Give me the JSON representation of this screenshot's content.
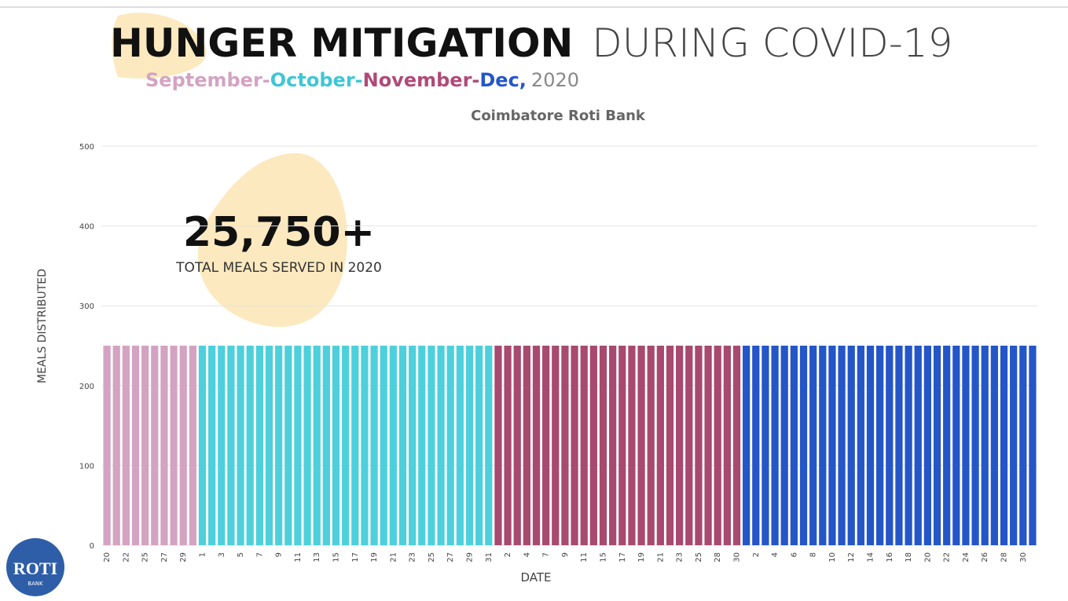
{
  "chart_data": {
    "type": "bar",
    "title_bold": "HUNGER MITIGATION",
    "title_light": "DURING COVID-19",
    "subtitle": [
      {
        "text": "September-",
        "color": "#d4a3c2"
      },
      {
        "text": "October-",
        "color": "#3fc6d6"
      },
      {
        "text": "November-",
        "color": "#b04a78"
      },
      {
        "text": "Dec,",
        "color": "#2456c8"
      },
      {
        "text": "2020",
        "color": "#888888"
      }
    ],
    "chart_title": "Coimbatore Roti Bank",
    "annotation_value": "25,750+",
    "annotation_text": "TOTAL MEALS SERVED IN 2020",
    "y_label": "MEALS DISTRIBUTED",
    "x_label": "DATE",
    "logo_text": "ROTI",
    "logo_subtext": "BANK",
    "ylim": [
      0,
      500
    ],
    "yticks": [
      0,
      100,
      200,
      300,
      400,
      500
    ],
    "grid": true,
    "categories": [
      "20",
      null,
      "22",
      null,
      "25",
      null,
      "27",
      null,
      "29",
      null,
      "1",
      null,
      "3",
      null,
      "5",
      null,
      "7",
      null,
      "9",
      null,
      "11",
      null,
      "13",
      null,
      "15",
      null,
      "17",
      null,
      "19",
      null,
      "21",
      null,
      "23",
      null,
      "25",
      null,
      "27",
      null,
      "29",
      null,
      "31",
      null,
      "2",
      null,
      "4",
      null,
      "7",
      null,
      "9",
      null,
      "11",
      null,
      "15",
      null,
      "17",
      null,
      "19",
      null,
      "21",
      null,
      "23",
      null,
      "25",
      null,
      "28",
      null,
      "30",
      null,
      "2",
      null,
      "4",
      null,
      "6",
      null,
      "8",
      null,
      "10",
      null,
      "12",
      null,
      "14",
      null,
      "16",
      null,
      "18",
      null,
      "20",
      null,
      "22",
      null,
      "24",
      null,
      "26",
      null,
      "28",
      null,
      "30",
      null
    ],
    "values": [
      250,
      250,
      250,
      250,
      250,
      250,
      250,
      250,
      250,
      250,
      250,
      250,
      250,
      250,
      250,
      250,
      250,
      250,
      250,
      250,
      250,
      250,
      250,
      250,
      250,
      250,
      250,
      250,
      250,
      250,
      250,
      250,
      250,
      250,
      250,
      250,
      250,
      250,
      250,
      250,
      250,
      250,
      250,
      250,
      250,
      250,
      250,
      250,
      250,
      250,
      250,
      250,
      250,
      250,
      250,
      250,
      250,
      250,
      250,
      250,
      250,
      250,
      250,
      250,
      250,
      250,
      250,
      250,
      250,
      250,
      250,
      250,
      250,
      250,
      250,
      250,
      250,
      250,
      250,
      250,
      250,
      250,
      250,
      250,
      250,
      250,
      250,
      250,
      250,
      250,
      250,
      250,
      250,
      250,
      250,
      250,
      250,
      250
    ],
    "colors": [
      "#d4a3c2",
      "#d4a3c2",
      "#d4a3c2",
      "#d4a3c2",
      "#d4a3c2",
      "#d4a3c2",
      "#d4a3c2",
      "#d4a3c2",
      "#d4a3c2",
      "#d4a3c2",
      "#4dd0dc",
      "#4dd0dc",
      "#4dd0dc",
      "#4dd0dc",
      "#4dd0dc",
      "#4dd0dc",
      "#4dd0dc",
      "#4dd0dc",
      "#4dd0dc",
      "#4dd0dc",
      "#4dd0dc",
      "#4dd0dc",
      "#4dd0dc",
      "#4dd0dc",
      "#4dd0dc",
      "#4dd0dc",
      "#4dd0dc",
      "#4dd0dc",
      "#4dd0dc",
      "#4dd0dc",
      "#4dd0dc",
      "#4dd0dc",
      "#4dd0dc",
      "#4dd0dc",
      "#4dd0dc",
      "#4dd0dc",
      "#4dd0dc",
      "#4dd0dc",
      "#4dd0dc",
      "#4dd0dc",
      "#4dd0dc",
      "#a8496f",
      "#a8496f",
      "#a8496f",
      "#a8496f",
      "#a8496f",
      "#a8496f",
      "#a8496f",
      "#a8496f",
      "#a8496f",
      "#a8496f",
      "#a8496f",
      "#a8496f",
      "#a8496f",
      "#a8496f",
      "#a8496f",
      "#a8496f",
      "#a8496f",
      "#a8496f",
      "#a8496f",
      "#a8496f",
      "#a8496f",
      "#a8496f",
      "#a8496f",
      "#a8496f",
      "#a8496f",
      "#a8496f",
      "#2456c8",
      "#2456c8",
      "#2456c8",
      "#2456c8",
      "#2456c8",
      "#2456c8",
      "#2456c8",
      "#2456c8",
      "#2456c8",
      "#2456c8",
      "#2456c8",
      "#2456c8",
      "#2456c8",
      "#2456c8",
      "#2456c8",
      "#2456c8",
      "#2456c8",
      "#2456c8",
      "#2456c8",
      "#2456c8",
      "#2456c8",
      "#2456c8",
      "#2456c8",
      "#2456c8",
      "#2456c8",
      "#2456c8",
      "#2456c8",
      "#2456c8",
      "#2456c8",
      "#2456c8",
      "#2456c8"
    ]
  }
}
